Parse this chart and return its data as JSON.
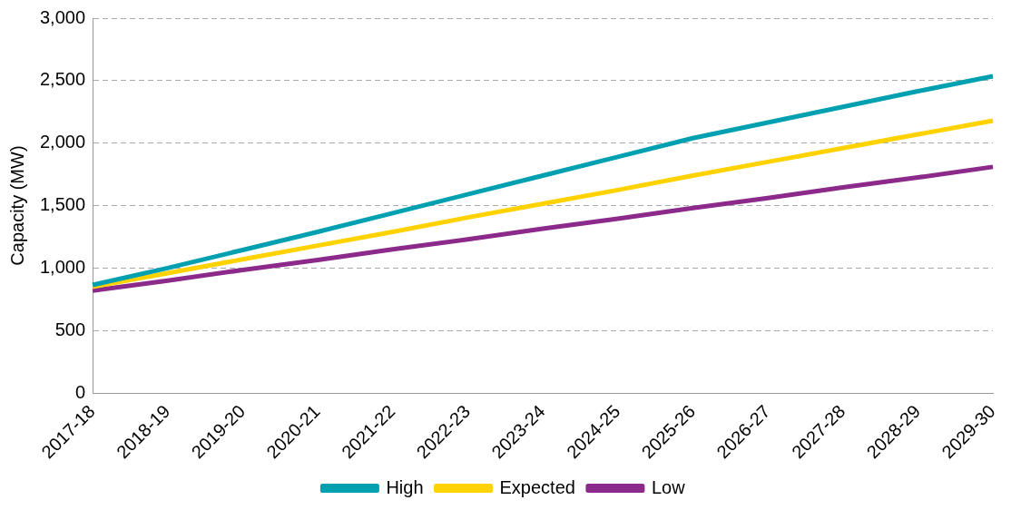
{
  "chart_data": {
    "type": "line",
    "ylabel": "Capacity (MW)",
    "categories": [
      "2017-18",
      "2018-19",
      "2019-20",
      "2020-21",
      "2021-22",
      "2022-23",
      "2023-24",
      "2024-25",
      "2025-26",
      "2026-27",
      "2027-28",
      "2028-29",
      "2029-30"
    ],
    "series": [
      {
        "name": "High",
        "color": "#00a0b0",
        "values": [
          865,
          1000,
          1145,
          1290,
          1440,
          1590,
          1740,
          1890,
          2040,
          2165,
          2290,
          2415,
          2535
        ]
      },
      {
        "name": "Expected",
        "color": "#ffd200",
        "values": [
          850,
          960,
          1070,
          1180,
          1290,
          1405,
          1515,
          1625,
          1740,
          1850,
          1960,
          2070,
          2180
        ]
      },
      {
        "name": "Low",
        "color": "#8b2a8b",
        "values": [
          820,
          900,
          985,
          1065,
          1150,
          1230,
          1315,
          1395,
          1480,
          1560,
          1645,
          1725,
          1810
        ]
      }
    ],
    "ylim": [
      0,
      3000
    ],
    "yticks": [
      0,
      500,
      {
        "value": 1000,
        "label": "1,000"
      },
      {
        "value": 1500,
        "label": "1,500"
      },
      {
        "value": 2000,
        "label": "2,000"
      },
      {
        "value": 2500,
        "label": "2,500"
      },
      {
        "value": 3000,
        "label": "3,000"
      }
    ],
    "grid": "y",
    "legend": "bottom",
    "marker": "none",
    "line_style": "solid"
  }
}
